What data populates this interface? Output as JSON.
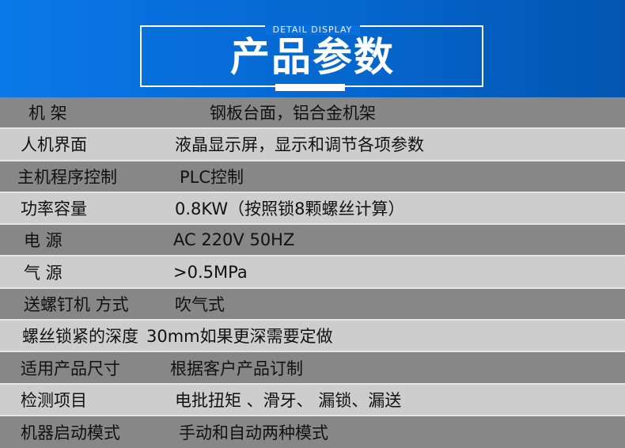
{
  "header": {
    "subtitle": "DETAIL DISPLAY",
    "title": "产品参数",
    "gradient_colors": [
      "#0a78e8",
      "#0355b0"
    ]
  },
  "colors": {
    "row_dark": "#878787",
    "row_light": "#cdcdcd"
  },
  "specs": [
    {
      "label": "机 架",
      "value": "钢板台面，铝合金机架"
    },
    {
      "label": "人机界面",
      "value": "液晶显示屏，显示和调节各项参数"
    },
    {
      "label": "主机程序控制",
      "value": "PLC控制"
    },
    {
      "label": "功率容量",
      "value": "0.8KW（按照锁8颗螺丝计算）"
    },
    {
      "label": "电 源",
      "value": "AC 220V 50HZ"
    },
    {
      "label": "气 源",
      "value": ">0.5MPa"
    },
    {
      "label": "送螺钉机 方式",
      "value": "吹气式"
    },
    {
      "label": "螺丝锁紧的深度",
      "value": "30mm如果更深需要定做"
    },
    {
      "label": "适用产品尺寸",
      "value": "根据客户产品订制"
    },
    {
      "label": "检测项目",
      "value": "电批扭矩 、滑牙、 漏锁、漏送"
    },
    {
      "label": "机器启动模式",
      "value": "手动和自动两种模式"
    }
  ]
}
